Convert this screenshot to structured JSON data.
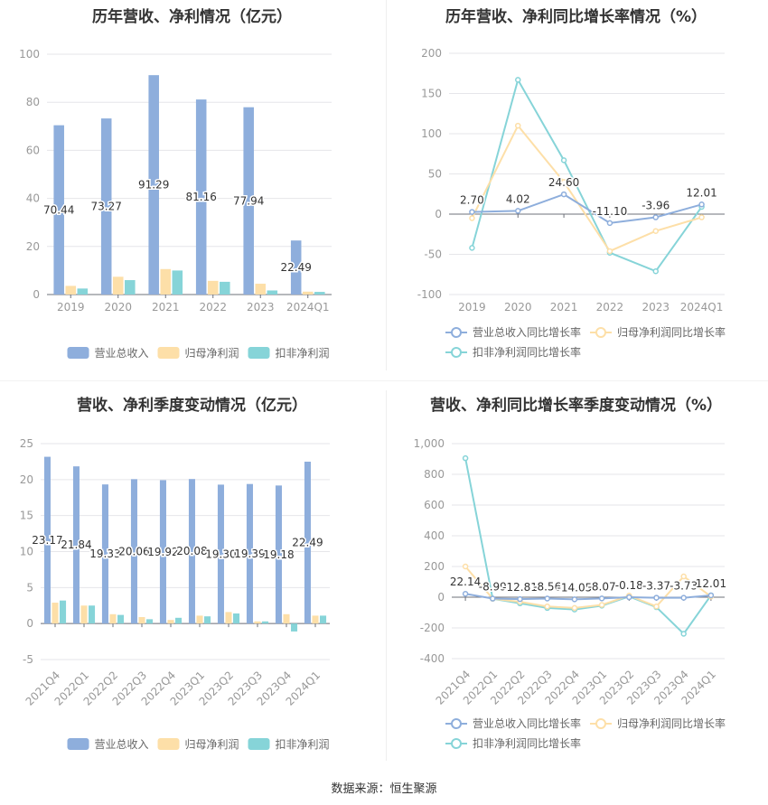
{
  "source": "数据来源：恒生聚源",
  "colors": {
    "revenue": "#8eaedc",
    "net": "#fddfa8",
    "deducted": "#86d4d8",
    "grid": "#e6e6ea",
    "axis": "#999999",
    "text": "#333333"
  },
  "chart_data": [
    {
      "type": "bar",
      "title": "历年营收、净利情况（亿元）",
      "categories": [
        "2019",
        "2020",
        "2021",
        "2022",
        "2023",
        "2024Q1"
      ],
      "ylim": [
        0,
        100
      ],
      "yticks": [
        "0",
        "20",
        "40",
        "60",
        "80",
        "100"
      ],
      "series": [
        {
          "name": "营业总收入",
          "values": [
            70.44,
            73.27,
            91.29,
            81.16,
            77.94,
            22.49
          ],
          "labels": [
            "70.44",
            "73.27",
            "91.29",
            "81.16",
            "77.94",
            "22.49"
          ]
        },
        {
          "name": "归母净利润",
          "values": [
            3.6,
            7.4,
            10.6,
            5.7,
            4.5,
            1.2
          ]
        },
        {
          "name": "扣非净利润",
          "values": [
            2.5,
            6.0,
            10.0,
            5.3,
            1.7,
            1.1
          ]
        }
      ],
      "grid": true,
      "legend": "bottom"
    },
    {
      "type": "line",
      "title": "历年营收、净利同比增长率情况（%）",
      "categories": [
        "2019",
        "2020",
        "2021",
        "2022",
        "2023",
        "2024Q1"
      ],
      "ylim": [
        -100,
        200
      ],
      "yticks": [
        "-100",
        "-50",
        "0",
        "50",
        "100",
        "150",
        "200"
      ],
      "series": [
        {
          "name": "营业总收入同比增长率",
          "values": [
            2.7,
            4.02,
            24.6,
            -11.1,
            -3.96,
            12.01
          ],
          "labels": [
            "2.70",
            "4.02",
            "24.60",
            "-11.10",
            "-3.96",
            "12.01"
          ]
        },
        {
          "name": "归母净利润同比增长率",
          "values": [
            -5,
            110,
            40,
            -46,
            -21,
            -4
          ]
        },
        {
          "name": "扣非净利润同比增长率",
          "values": [
            -42,
            167,
            67,
            -48,
            -71,
            9
          ]
        }
      ],
      "grid": true,
      "legend": "bottom"
    },
    {
      "type": "bar",
      "title": "营收、净利季度变动情况（亿元）",
      "categories": [
        "2021Q4",
        "2022Q1",
        "2022Q2",
        "2022Q3",
        "2022Q4",
        "2023Q1",
        "2023Q2",
        "2023Q3",
        "2023Q4",
        "2024Q1"
      ],
      "ylim": [
        -5,
        25
      ],
      "yticks": [
        "-5",
        "0",
        "5",
        "10",
        "15",
        "20",
        "25"
      ],
      "series": [
        {
          "name": "营业总收入",
          "values": [
            23.17,
            21.84,
            19.33,
            20.06,
            19.92,
            20.08,
            19.3,
            19.39,
            19.18,
            22.49
          ],
          "labels": [
            "23.17",
            "21.84",
            "19.33",
            "20.06",
            "19.92",
            "20.08",
            "19.30",
            "19.39",
            "19.18",
            "22.49"
          ]
        },
        {
          "name": "归母净利润",
          "values": [
            2.9,
            2.5,
            1.3,
            0.9,
            0.5,
            1.1,
            1.6,
            0.3,
            1.3,
            1.1
          ]
        },
        {
          "name": "扣非净利润",
          "values": [
            3.2,
            2.5,
            1.2,
            0.6,
            0.8,
            1.0,
            1.4,
            0.3,
            -1.1,
            1.1
          ]
        }
      ],
      "grid": true,
      "legend": "bottom"
    },
    {
      "type": "line",
      "title": "营收、净利同比增长率季度变动情况（%）",
      "categories": [
        "2021Q4",
        "2022Q1",
        "2022Q2",
        "2022Q3",
        "2022Q4",
        "2023Q1",
        "2023Q2",
        "2023Q3",
        "2023Q4",
        "2024Q1"
      ],
      "ylim": [
        -400,
        1000
      ],
      "yticks": [
        "-400",
        "-200",
        "0",
        "200",
        "400",
        "600",
        "800",
        "1,000"
      ],
      "series": [
        {
          "name": "营业总收入同比增长率",
          "values": [
            22.14,
            -8.99,
            -12.81,
            -8.56,
            -14.05,
            -8.07,
            -0.18,
            -3.37,
            -3.73,
            12.01
          ],
          "labels": [
            "22.14",
            "-8.99",
            "-12.81",
            "-8.56",
            "-14.05",
            "-8.07",
            "-0.18",
            "-3.37",
            "-3.73",
            "12.01"
          ]
        },
        {
          "name": "归母净利润同比增长率",
          "values": [
            200,
            -10,
            -30,
            -60,
            -70,
            -50,
            10,
            -60,
            135,
            5
          ]
        },
        {
          "name": "扣非净利润同比增长率",
          "values": [
            905,
            -10,
            -40,
            -70,
            -80,
            -55,
            5,
            -65,
            -238,
            12
          ]
        }
      ],
      "grid": true,
      "legend": "bottom"
    }
  ]
}
